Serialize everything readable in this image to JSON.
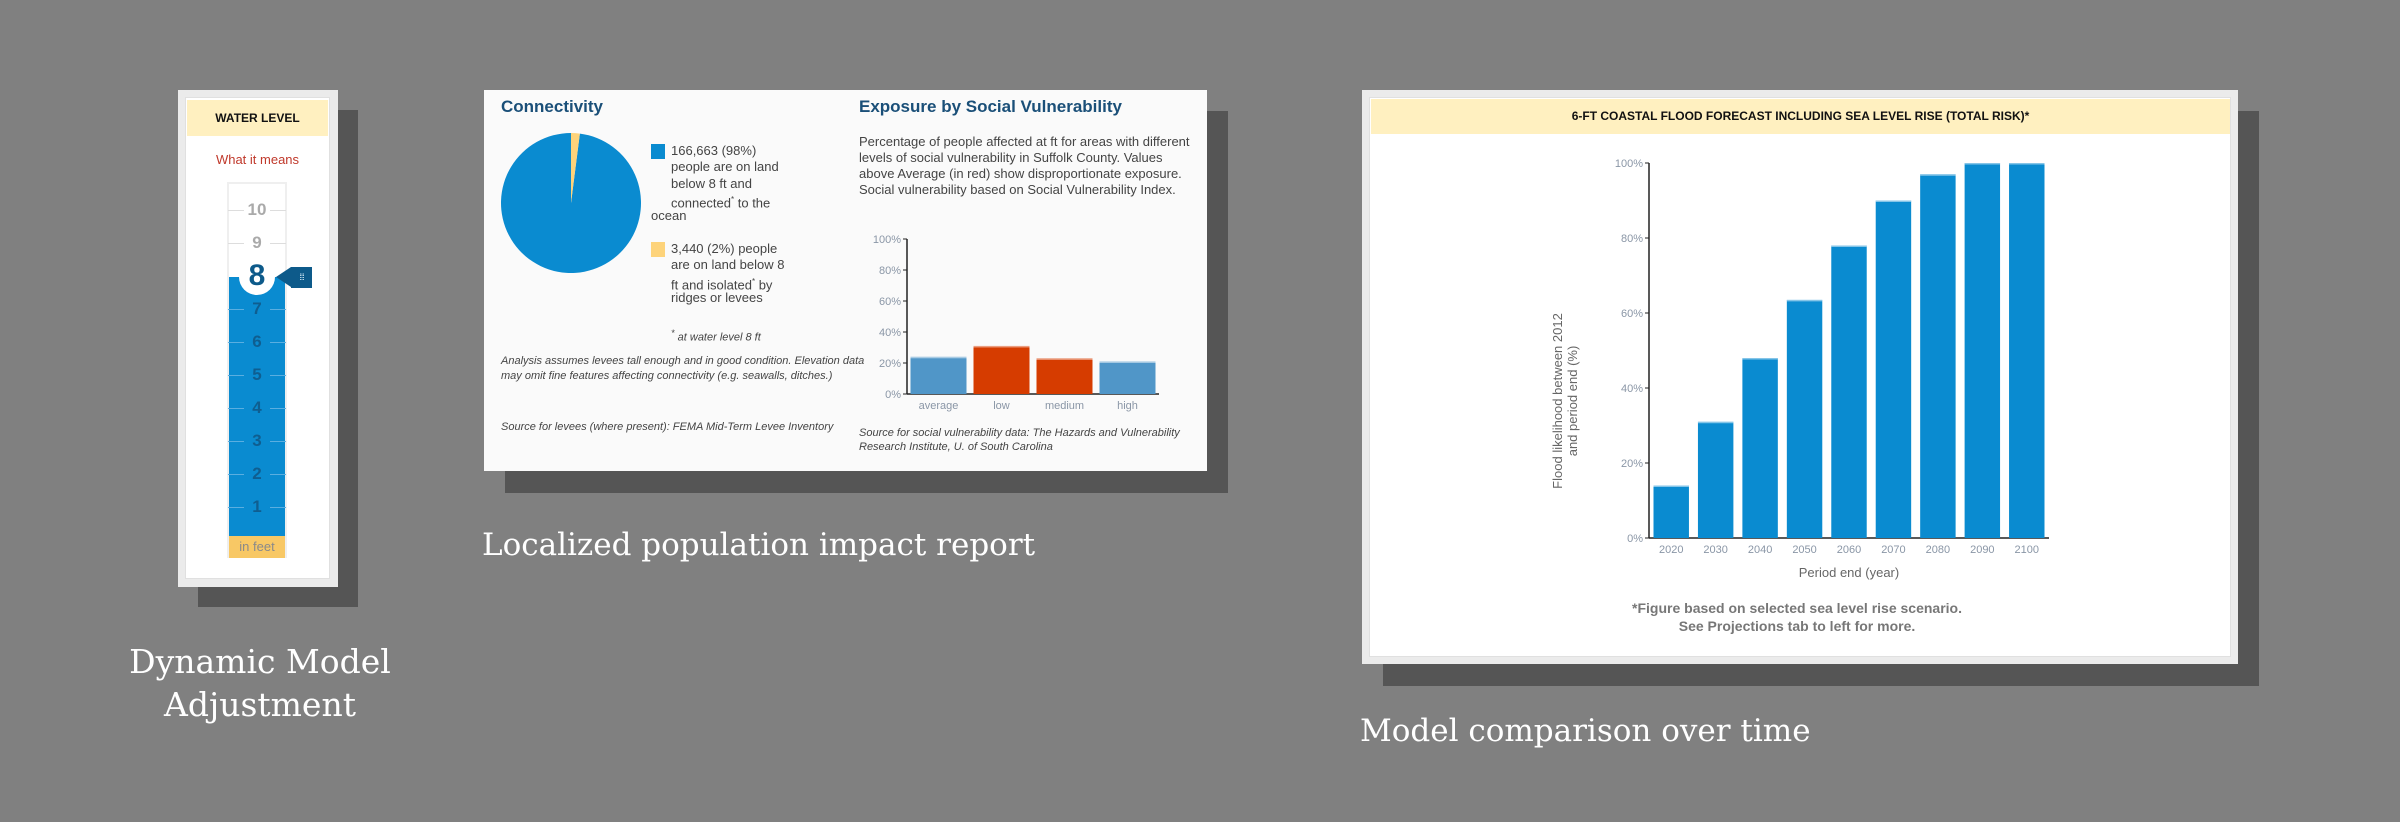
{
  "captions": {
    "dynamic": [
      "Dynamic Model",
      "Adjustment"
    ],
    "localized": "Localized population impact report",
    "comparison": "Model comparison over time"
  },
  "water_level": {
    "title": "WATER LEVEL",
    "link": "What it means",
    "current": "8",
    "ticks_above": [
      "10",
      "9"
    ],
    "ticks_below": [
      "7",
      "6",
      "5",
      "4",
      "3",
      "2",
      "1"
    ],
    "unit": "in feet",
    "level_ft": 8,
    "max_ft": 10,
    "handle_icon": "grip-dots"
  },
  "report": {
    "connectivity_title": "Connectivity",
    "legend": [
      {
        "color": "#0a8bd0",
        "lines": [
          "166,663 (98%)",
          "people are on land",
          "below 8 ft and",
          "connected* to the"
        ],
        "tail": "ocean"
      },
      {
        "color": "#fdd37a",
        "lines": [
          "3,440 (2%) people",
          "are on land below 8",
          "ft and isolated* by",
          "ridges or levees"
        ],
        "tail": ""
      }
    ],
    "footnote": "at water level 8 ft",
    "footnote_mark": "*",
    "analysis": "Analysis assumes levees tall enough and in good condition. Elevation data may omit fine features affecting connectivity (e.g. seawalls, ditches.)",
    "levee_source": "Source for levees (where present): FEMA Mid-Term Levee Inventory",
    "exposure_title": "Exposure by Social Vulnerability",
    "exposure_text": "Percentage of people affected at ft for areas with different levels of social vulnerability in Suffolk County. Values above Average (in red) show disproportionate exposure. Social vulnerability based on Social Vulnerability Index.",
    "sv_source": "Source for social vulnerability data: The Hazards and Vulnerability Research Institute, U. of South Carolina"
  },
  "forecast": {
    "title": "6-FT COASTAL FLOOD FORECAST INCLUDING SEA LEVEL RISE (TOTAL RISK)*",
    "footnote_1": "*Figure based on selected sea level rise scenario.",
    "footnote_2": "See Projections tab to left for more."
  },
  "chart_data": [
    {
      "type": "pie",
      "title": "Connectivity",
      "categories": [
        "connected",
        "isolated"
      ],
      "values": [
        166663,
        3440
      ],
      "colors": [
        "#0a8bd0",
        "#fdd37a"
      ]
    },
    {
      "type": "bar",
      "title": "Exposure by Social Vulnerability",
      "categories": [
        "average",
        "low",
        "medium",
        "high"
      ],
      "values": [
        24,
        31,
        23,
        21
      ],
      "colors": [
        "#5096c8",
        "#d63c00",
        "#d63c00",
        "#5096c8"
      ],
      "ylim": [
        0,
        100
      ],
      "yticks": [
        "0%",
        "20%",
        "40%",
        "60%",
        "80%",
        "100%"
      ],
      "xlabel": "",
      "ylabel": ""
    },
    {
      "type": "bar",
      "title": "6-FT COASTAL FLOOD FORECAST INCLUDING SEA LEVEL RISE (TOTAL RISK)*",
      "categories": [
        "2020",
        "2030",
        "2040",
        "2050",
        "2060",
        "2070",
        "2080",
        "2090",
        "2100"
      ],
      "values": [
        14,
        31,
        48,
        63.5,
        78,
        90,
        97,
        100,
        100
      ],
      "color": "#0a8bd0",
      "ylim": [
        0,
        100
      ],
      "yticks": [
        "0%",
        "20%",
        "40%",
        "60%",
        "80%",
        "100%"
      ],
      "xlabel": "Period end (year)",
      "ylabel": [
        "Flood likelihood between 2012",
        "and period end (%)"
      ]
    }
  ]
}
